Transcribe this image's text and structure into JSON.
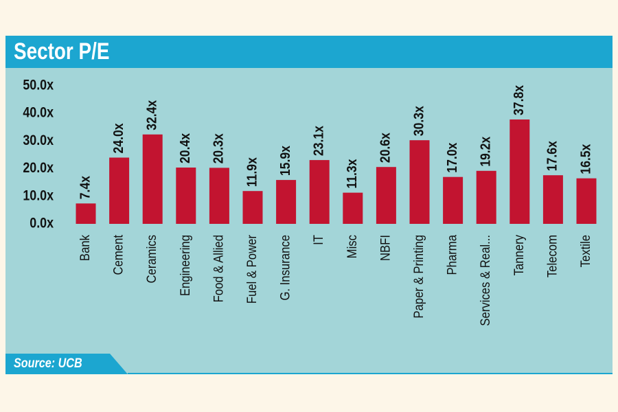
{
  "header": {
    "title": "Sector P/E"
  },
  "footer": {
    "source": "Source: UCB"
  },
  "colors": {
    "panel_background": "#a3d5d8",
    "header_background": "#1ca6d0",
    "bar": "#c21430",
    "text": "#111111",
    "page_background": "#fdf6e8"
  },
  "chart_data": {
    "type": "bar",
    "title": "Sector P/E",
    "categories": [
      "Bank",
      "Cement",
      "Ceramics",
      "Engineering",
      "Food & Allied",
      "Fuel & Power",
      "G. Insurance",
      "IT",
      "Misc",
      "NBFI",
      "Paper & Printing",
      "Pharma",
      "Services & Real...",
      "Tannery",
      "Telecom",
      "Textile"
    ],
    "values": [
      7.4,
      24.0,
      32.4,
      20.4,
      20.3,
      11.9,
      15.9,
      23.1,
      11.3,
      20.6,
      30.3,
      17.0,
      19.2,
      37.8,
      17.6,
      16.5
    ],
    "value_labels": [
      "7.4x",
      "24.0x",
      "32.4x",
      "20.4x",
      "20.3x",
      "11.9x",
      "15.9x",
      "23.1x",
      "11.3x",
      "20.6x",
      "30.3x",
      "17.0x",
      "19.2x",
      "37.8x",
      "17.6x",
      "16.5x"
    ],
    "yticks": [
      0,
      10,
      20,
      30,
      40,
      50
    ],
    "ytick_labels": [
      "0.0x",
      "10.0x",
      "20.0x",
      "30.0x",
      "40.0x",
      "50.0x"
    ],
    "ylim": [
      0,
      50
    ],
    "grid": false,
    "legend": "none"
  }
}
